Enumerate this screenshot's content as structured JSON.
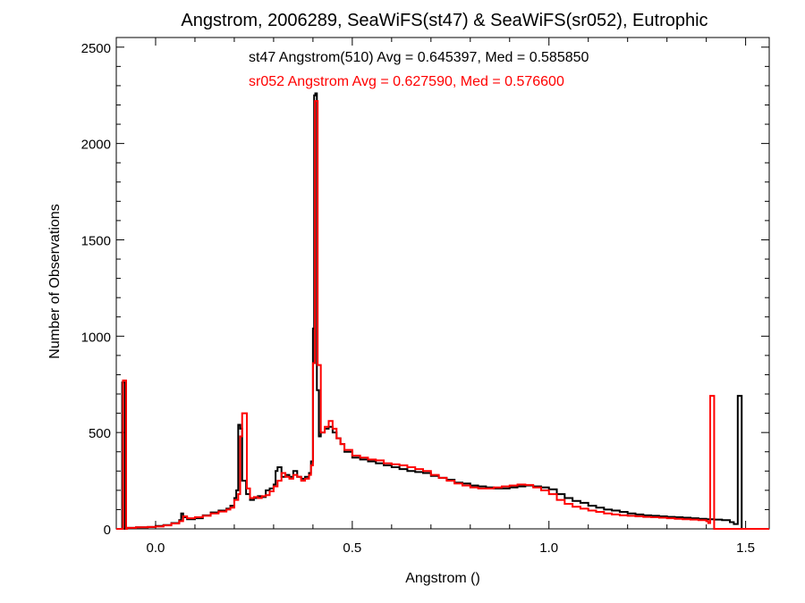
{
  "chart_data": {
    "type": "line",
    "title": "Angstrom, 2006289, SeaWiFS(st47) & SeaWiFS(sr052), Eutrophic",
    "xlabel": "Angstrom ()",
    "ylabel": "Number of Observations",
    "xlim": [
      -0.1,
      1.56
    ],
    "ylim": [
      0,
      2550
    ],
    "x_ticks": [
      0.0,
      0.5,
      1.0,
      1.5
    ],
    "x_tick_labels": [
      "0.0",
      "0.5",
      "1.0",
      "1.5"
    ],
    "y_ticks": [
      0,
      500,
      1000,
      1500,
      2000,
      2500
    ],
    "y_tick_labels": [
      "0",
      "500",
      "1000",
      "1500",
      "2000",
      "2500"
    ],
    "grid": false,
    "colors": {
      "st47": "#000000",
      "sr052": "#ff0000"
    },
    "annotations": [
      {
        "text": "st47 Angstrom(510) Avg = 0.645397, Med = 0.585850",
        "color": "#000000"
      },
      {
        "text": "sr052 Angstrom Avg = 0.627590, Med = 0.576600",
        "color": "#ff0000"
      }
    ],
    "series": [
      {
        "id": "st47",
        "color": "#000000",
        "points": [
          [
            -0.1,
            0
          ],
          [
            -0.09,
            0
          ],
          [
            -0.085,
            760
          ],
          [
            -0.08,
            760
          ],
          [
            -0.078,
            0
          ],
          [
            -0.075,
            5
          ],
          [
            -0.05,
            8
          ],
          [
            -0.02,
            10
          ],
          [
            0.0,
            15
          ],
          [
            0.02,
            20
          ],
          [
            0.04,
            30
          ],
          [
            0.06,
            45
          ],
          [
            0.065,
            80
          ],
          [
            0.07,
            60
          ],
          [
            0.08,
            50
          ],
          [
            0.1,
            55
          ],
          [
            0.12,
            70
          ],
          [
            0.14,
            85
          ],
          [
            0.16,
            95
          ],
          [
            0.18,
            105
          ],
          [
            0.19,
            120
          ],
          [
            0.2,
            160
          ],
          [
            0.205,
            200
          ],
          [
            0.21,
            540
          ],
          [
            0.215,
            520
          ],
          [
            0.22,
            250
          ],
          [
            0.23,
            180
          ],
          [
            0.24,
            150
          ],
          [
            0.25,
            160
          ],
          [
            0.26,
            170
          ],
          [
            0.27,
            165
          ],
          [
            0.28,
            200
          ],
          [
            0.29,
            210
          ],
          [
            0.3,
            230
          ],
          [
            0.305,
            300
          ],
          [
            0.31,
            320
          ],
          [
            0.32,
            270
          ],
          [
            0.33,
            280
          ],
          [
            0.34,
            270
          ],
          [
            0.35,
            300
          ],
          [
            0.36,
            270
          ],
          [
            0.37,
            260
          ],
          [
            0.38,
            270
          ],
          [
            0.39,
            290
          ],
          [
            0.395,
            350
          ],
          [
            0.4,
            1040
          ],
          [
            0.403,
            2250
          ],
          [
            0.406,
            2260
          ],
          [
            0.41,
            720
          ],
          [
            0.415,
            480
          ],
          [
            0.42,
            500
          ],
          [
            0.43,
            520
          ],
          [
            0.44,
            530
          ],
          [
            0.45,
            500
          ],
          [
            0.46,
            470
          ],
          [
            0.47,
            440
          ],
          [
            0.48,
            400
          ],
          [
            0.5,
            370
          ],
          [
            0.52,
            360
          ],
          [
            0.54,
            350
          ],
          [
            0.56,
            340
          ],
          [
            0.58,
            330
          ],
          [
            0.6,
            320
          ],
          [
            0.62,
            310
          ],
          [
            0.64,
            300
          ],
          [
            0.66,
            295
          ],
          [
            0.68,
            290
          ],
          [
            0.7,
            275
          ],
          [
            0.72,
            265
          ],
          [
            0.74,
            255
          ],
          [
            0.76,
            240
          ],
          [
            0.78,
            235
          ],
          [
            0.8,
            225
          ],
          [
            0.82,
            220
          ],
          [
            0.84,
            215
          ],
          [
            0.86,
            210
          ],
          [
            0.88,
            210
          ],
          [
            0.9,
            215
          ],
          [
            0.92,
            220
          ],
          [
            0.94,
            225
          ],
          [
            0.96,
            220
          ],
          [
            0.98,
            215
          ],
          [
            1.0,
            205
          ],
          [
            1.02,
            180
          ],
          [
            1.04,
            160
          ],
          [
            1.06,
            145
          ],
          [
            1.08,
            135
          ],
          [
            1.1,
            120
          ],
          [
            1.12,
            110
          ],
          [
            1.14,
            100
          ],
          [
            1.16,
            95
          ],
          [
            1.18,
            88
          ],
          [
            1.2,
            80
          ],
          [
            1.22,
            75
          ],
          [
            1.24,
            70
          ],
          [
            1.26,
            68
          ],
          [
            1.28,
            65
          ],
          [
            1.3,
            62
          ],
          [
            1.32,
            60
          ],
          [
            1.34,
            58
          ],
          [
            1.36,
            55
          ],
          [
            1.38,
            52
          ],
          [
            1.4,
            50
          ],
          [
            1.42,
            48
          ],
          [
            1.44,
            45
          ],
          [
            1.46,
            35
          ],
          [
            1.47,
            25
          ],
          [
            1.48,
            690
          ],
          [
            1.486,
            690
          ],
          [
            1.49,
            0
          ],
          [
            1.56,
            0
          ]
        ]
      },
      {
        "id": "sr052",
        "color": "#ff0000",
        "points": [
          [
            -0.1,
            0
          ],
          [
            -0.088,
            0
          ],
          [
            -0.083,
            770
          ],
          [
            -0.078,
            770
          ],
          [
            -0.075,
            0
          ],
          [
            -0.073,
            5
          ],
          [
            -0.05,
            8
          ],
          [
            -0.02,
            10
          ],
          [
            0.0,
            12
          ],
          [
            0.02,
            18
          ],
          [
            0.04,
            28
          ],
          [
            0.06,
            40
          ],
          [
            0.07,
            65
          ],
          [
            0.08,
            55
          ],
          [
            0.1,
            60
          ],
          [
            0.12,
            68
          ],
          [
            0.14,
            80
          ],
          [
            0.16,
            90
          ],
          [
            0.18,
            100
          ],
          [
            0.19,
            110
          ],
          [
            0.2,
            150
          ],
          [
            0.21,
            180
          ],
          [
            0.215,
            480
          ],
          [
            0.22,
            600
          ],
          [
            0.23,
            600
          ],
          [
            0.232,
            210
          ],
          [
            0.24,
            160
          ],
          [
            0.25,
            165
          ],
          [
            0.26,
            160
          ],
          [
            0.27,
            170
          ],
          [
            0.28,
            175
          ],
          [
            0.29,
            195
          ],
          [
            0.3,
            220
          ],
          [
            0.31,
            250
          ],
          [
            0.32,
            290
          ],
          [
            0.33,
            270
          ],
          [
            0.34,
            260
          ],
          [
            0.35,
            280
          ],
          [
            0.36,
            270
          ],
          [
            0.37,
            250
          ],
          [
            0.38,
            260
          ],
          [
            0.39,
            280
          ],
          [
            0.395,
            330
          ],
          [
            0.4,
            860
          ],
          [
            0.405,
            2220
          ],
          [
            0.41,
            2220
          ],
          [
            0.412,
            850
          ],
          [
            0.42,
            500
          ],
          [
            0.43,
            530
          ],
          [
            0.44,
            560
          ],
          [
            0.45,
            520
          ],
          [
            0.46,
            470
          ],
          [
            0.47,
            440
          ],
          [
            0.48,
            410
          ],
          [
            0.5,
            380
          ],
          [
            0.52,
            370
          ],
          [
            0.54,
            360
          ],
          [
            0.56,
            355
          ],
          [
            0.58,
            340
          ],
          [
            0.6,
            335
          ],
          [
            0.62,
            330
          ],
          [
            0.64,
            320
          ],
          [
            0.66,
            310
          ],
          [
            0.68,
            300
          ],
          [
            0.7,
            280
          ],
          [
            0.72,
            265
          ],
          [
            0.74,
            250
          ],
          [
            0.76,
            235
          ],
          [
            0.78,
            225
          ],
          [
            0.8,
            215
          ],
          [
            0.82,
            210
          ],
          [
            0.84,
            210
          ],
          [
            0.86,
            215
          ],
          [
            0.88,
            220
          ],
          [
            0.9,
            225
          ],
          [
            0.92,
            230
          ],
          [
            0.94,
            228
          ],
          [
            0.96,
            215
          ],
          [
            0.98,
            200
          ],
          [
            1.0,
            180
          ],
          [
            1.02,
            150
          ],
          [
            1.04,
            130
          ],
          [
            1.06,
            115
          ],
          [
            1.08,
            105
          ],
          [
            1.1,
            95
          ],
          [
            1.12,
            88
          ],
          [
            1.14,
            80
          ],
          [
            1.16,
            75
          ],
          [
            1.18,
            70
          ],
          [
            1.2,
            68
          ],
          [
            1.22,
            65
          ],
          [
            1.24,
            62
          ],
          [
            1.26,
            60
          ],
          [
            1.28,
            58
          ],
          [
            1.3,
            55
          ],
          [
            1.32,
            52
          ],
          [
            1.34,
            50
          ],
          [
            1.36,
            48
          ],
          [
            1.38,
            45
          ],
          [
            1.4,
            40
          ],
          [
            1.405,
            30
          ],
          [
            1.41,
            690
          ],
          [
            1.416,
            690
          ],
          [
            1.42,
            0
          ],
          [
            1.56,
            0
          ]
        ]
      }
    ]
  }
}
